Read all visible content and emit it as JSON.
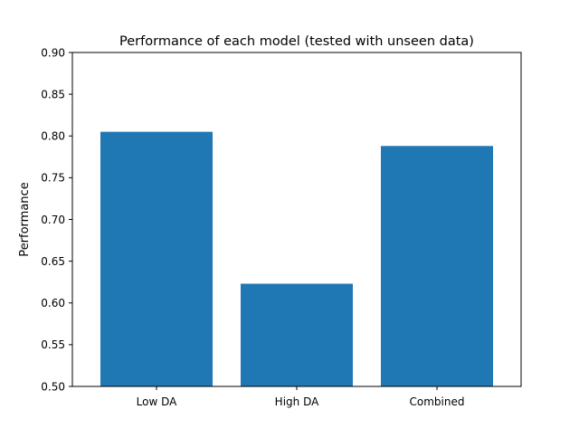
{
  "chart_data": {
    "type": "bar",
    "title": "Performance of each model (tested with unseen data)",
    "xlabel": "",
    "ylabel": "Performance",
    "categories": [
      "Low DA",
      "High DA",
      "Combined"
    ],
    "values": [
      0.805,
      0.623,
      0.788
    ],
    "ylim": [
      0.5,
      0.9
    ],
    "yticks": [
      "0.50",
      "0.55",
      "0.60",
      "0.65",
      "0.70",
      "0.75",
      "0.80",
      "0.85",
      "0.90"
    ],
    "bar_color": "#1f77b4",
    "grid": false,
    "legend": "none"
  }
}
